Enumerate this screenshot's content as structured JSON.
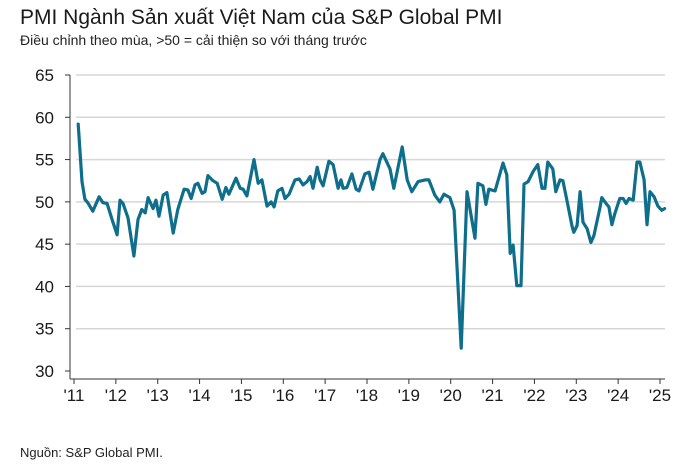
{
  "chart_data": {
    "type": "line",
    "title": "PMI Ngành Sản xuất Việt Nam của S&P Global PMI",
    "subtitle": "Điều chỉnh theo mùa, >50 = cải thiện so với tháng trước",
    "source": "Nguồn: S&P Global PMI.",
    "xlabel": "",
    "ylabel": "",
    "ylim": [
      30,
      65
    ],
    "xlim": [
      2011,
      2025
    ],
    "yticks": [
      65,
      60,
      55,
      50,
      45,
      40,
      35,
      30
    ],
    "xticks": [
      {
        "value": 2011,
        "label": "'11"
      },
      {
        "value": 2012,
        "label": "'12"
      },
      {
        "value": 2013,
        "label": "'13"
      },
      {
        "value": 2014,
        "label": "'14"
      },
      {
        "value": 2015,
        "label": "'15"
      },
      {
        "value": 2016,
        "label": "'16"
      },
      {
        "value": 2017,
        "label": "'17"
      },
      {
        "value": 2018,
        "label": "'18"
      },
      {
        "value": 2019,
        "label": "'19"
      },
      {
        "value": 2020,
        "label": "'20"
      },
      {
        "value": 2021,
        "label": "'21"
      },
      {
        "value": 2022,
        "label": "'22"
      },
      {
        "value": 2023,
        "label": "'23"
      },
      {
        "value": 2024,
        "label": "'24"
      },
      {
        "value": 2025,
        "label": "'25"
      }
    ],
    "grid": true,
    "color": "#0f6e8c",
    "series": [
      {
        "name": "PMI",
        "x": [
          2011.1,
          2011.19,
          2011.26,
          2011.33,
          2011.45,
          2011.6,
          2011.69,
          2011.79,
          2011.91,
          2012.03,
          2012.1,
          2012.17,
          2012.29,
          2012.43,
          2012.53,
          2012.62,
          2012.7,
          2012.77,
          2012.89,
          2012.96,
          2013.03,
          2013.13,
          2013.22,
          2013.37,
          2013.48,
          2013.63,
          2013.72,
          2013.8,
          2013.89,
          2013.96,
          2014.06,
          2014.13,
          2014.2,
          2014.32,
          2014.42,
          2014.54,
          2014.63,
          2014.7,
          2014.87,
          2014.97,
          2015.04,
          2015.13,
          2015.3,
          2015.4,
          2015.49,
          2015.61,
          2015.71,
          2015.78,
          2015.87,
          2015.97,
          2016.04,
          2016.14,
          2016.28,
          2016.38,
          2016.47,
          2016.57,
          2016.64,
          2016.71,
          2016.81,
          2016.88,
          2016.95,
          2017.09,
          2017.19,
          2017.31,
          2017.38,
          2017.43,
          2017.52,
          2017.64,
          2017.74,
          2017.81,
          2017.95,
          2018.05,
          2018.14,
          2018.31,
          2018.38,
          2018.55,
          2018.64,
          2018.84,
          2018.96,
          2019.07,
          2019.22,
          2019.39,
          2019.48,
          2019.62,
          2019.74,
          2019.84,
          2019.98,
          2020.08,
          2020.25,
          2020.39,
          2020.58,
          2020.65,
          2020.77,
          2020.84,
          2020.91,
          2021.06,
          2021.25,
          2021.34,
          2021.42,
          2021.49,
          2021.58,
          2021.68,
          2021.75,
          2021.85,
          2021.97,
          2022.08,
          2022.18,
          2022.25,
          2022.32,
          2022.44,
          2022.51,
          2022.61,
          2022.68,
          2022.8,
          2022.9,
          2022.94,
          2023.02,
          2023.09,
          2023.16,
          2023.26,
          2023.35,
          2023.42,
          2023.57,
          2023.61,
          2023.73,
          2023.78,
          2023.85,
          2023.92,
          2024.04,
          2024.12,
          2024.19,
          2024.26,
          2024.36,
          2024.45,
          2024.52,
          2024.62,
          2024.69,
          2024.76,
          2024.86,
          2024.95,
          2025.04,
          2025.11
        ],
        "values": [
          59.2,
          52.4,
          50.3,
          49.9,
          48.9,
          50.6,
          49.9,
          49.8,
          47.9,
          46.1,
          50.2,
          49.8,
          48.1,
          43.6,
          47.9,
          49.1,
          48.7,
          50.5,
          49.2,
          50.2,
          48.3,
          50.8,
          51.1,
          46.3,
          49.1,
          51.5,
          51.4,
          50.4,
          52.0,
          52.2,
          51.0,
          51.2,
          53.1,
          52.5,
          52.2,
          50.3,
          51.7,
          50.9,
          52.8,
          51.6,
          51.5,
          50.7,
          55.0,
          52.2,
          52.6,
          49.5,
          50.0,
          49.4,
          51.3,
          51.6,
          50.4,
          50.9,
          52.6,
          52.7,
          52.0,
          52.4,
          53.0,
          51.6,
          54.1,
          52.6,
          51.9,
          54.8,
          54.4,
          51.6,
          52.6,
          51.6,
          51.7,
          53.3,
          51.5,
          51.3,
          53.3,
          53.5,
          51.5,
          55.0,
          55.7,
          53.9,
          51.6,
          56.5,
          52.6,
          51.2,
          52.4,
          52.6,
          52.6,
          50.8,
          50.0,
          50.9,
          50.5,
          49.0,
          32.7,
          51.2,
          45.7,
          52.2,
          51.9,
          49.7,
          51.5,
          51.3,
          54.6,
          53.2,
          43.9,
          44.9,
          40.1,
          40.1,
          52.1,
          52.4,
          53.6,
          54.4,
          51.6,
          51.6,
          54.7,
          53.9,
          51.2,
          52.6,
          52.5,
          49.6,
          47.1,
          46.4,
          47.2,
          51.2,
          47.6,
          46.8,
          45.2,
          46.0,
          49.4,
          50.5,
          49.7,
          49.4,
          47.3,
          48.6,
          50.4,
          50.4,
          49.8,
          50.4,
          50.2,
          54.7,
          54.7,
          52.6,
          47.3,
          51.2,
          50.6,
          49.5,
          49.0,
          49.2
        ]
      }
    ]
  }
}
